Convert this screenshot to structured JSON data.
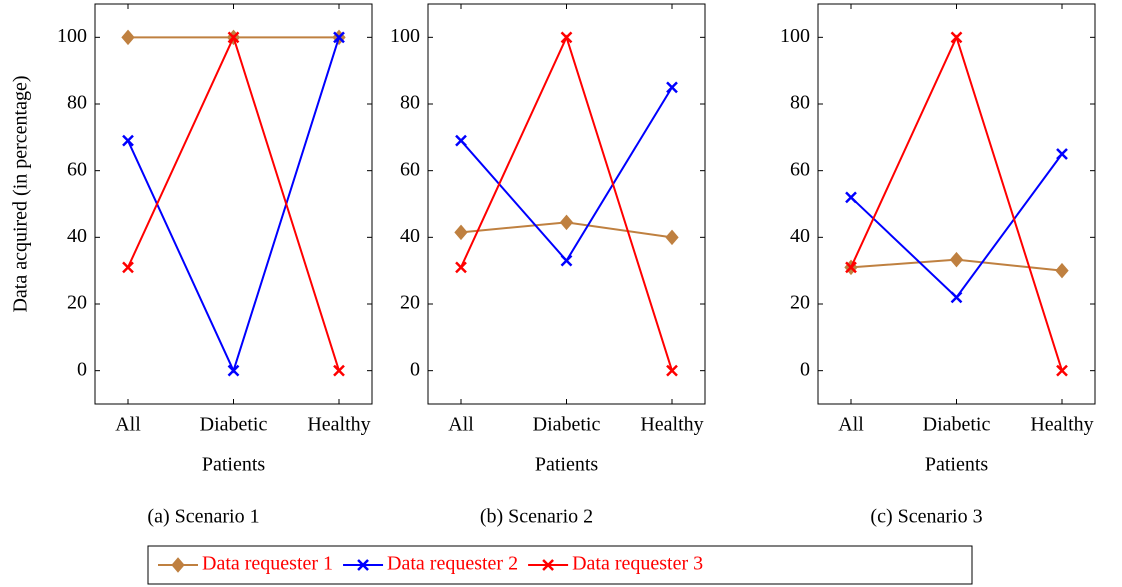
{
  "chart_data": [
    {
      "type": "line",
      "caption": "(a) Scenario 1",
      "x_label": "Patients",
      "y_label": "Data acquired (in percentage)",
      "categories": [
        "All",
        "Diabetic",
        "Healthy"
      ],
      "ylim": [
        -10,
        110
      ],
      "yticks": [
        0,
        20,
        40,
        60,
        80,
        100
      ],
      "grid": false,
      "series": [
        {
          "name": "Data requester 1",
          "color": "#bf8040",
          "marker": "diamond",
          "values": [
            100,
            100,
            100
          ]
        },
        {
          "name": "Data requester 2",
          "color": "#0000ff",
          "marker": "x",
          "values": [
            69,
            0,
            100
          ]
        },
        {
          "name": "Data requester 3",
          "color": "#ff0000",
          "marker": "x",
          "values": [
            31,
            100,
            0
          ]
        }
      ]
    },
    {
      "type": "line",
      "caption": "(b) Scenario 2",
      "x_label": "Patients",
      "categories": [
        "All",
        "Diabetic",
        "Healthy"
      ],
      "ylim": [
        -10,
        110
      ],
      "yticks": [
        0,
        20,
        40,
        60,
        80,
        100
      ],
      "grid": false,
      "series": [
        {
          "name": "Data requester 1",
          "color": "#bf8040",
          "marker": "diamond",
          "values": [
            41.5,
            44.5,
            40
          ]
        },
        {
          "name": "Data requester 2",
          "color": "#0000ff",
          "marker": "x",
          "values": [
            69,
            33,
            85
          ]
        },
        {
          "name": "Data requester 3",
          "color": "#ff0000",
          "marker": "x",
          "values": [
            31,
            100,
            0
          ]
        }
      ]
    },
    {
      "type": "line",
      "caption": "(c) Scenario 3",
      "x_label": "Patients",
      "categories": [
        "All",
        "Diabetic",
        "Healthy"
      ],
      "ylim": [
        -10,
        110
      ],
      "yticks": [
        0,
        20,
        40,
        60,
        80,
        100
      ],
      "grid": false,
      "series": [
        {
          "name": "Data requester 1",
          "color": "#bf8040",
          "marker": "diamond",
          "values": [
            31,
            33.3,
            30
          ]
        },
        {
          "name": "Data requester 2",
          "color": "#0000ff",
          "marker": "x",
          "values": [
            52,
            22,
            65
          ]
        },
        {
          "name": "Data requester 3",
          "color": "#ff0000",
          "marker": "x",
          "values": [
            31,
            100,
            0
          ]
        }
      ]
    }
  ],
  "legend_text_color": "#ff0000"
}
